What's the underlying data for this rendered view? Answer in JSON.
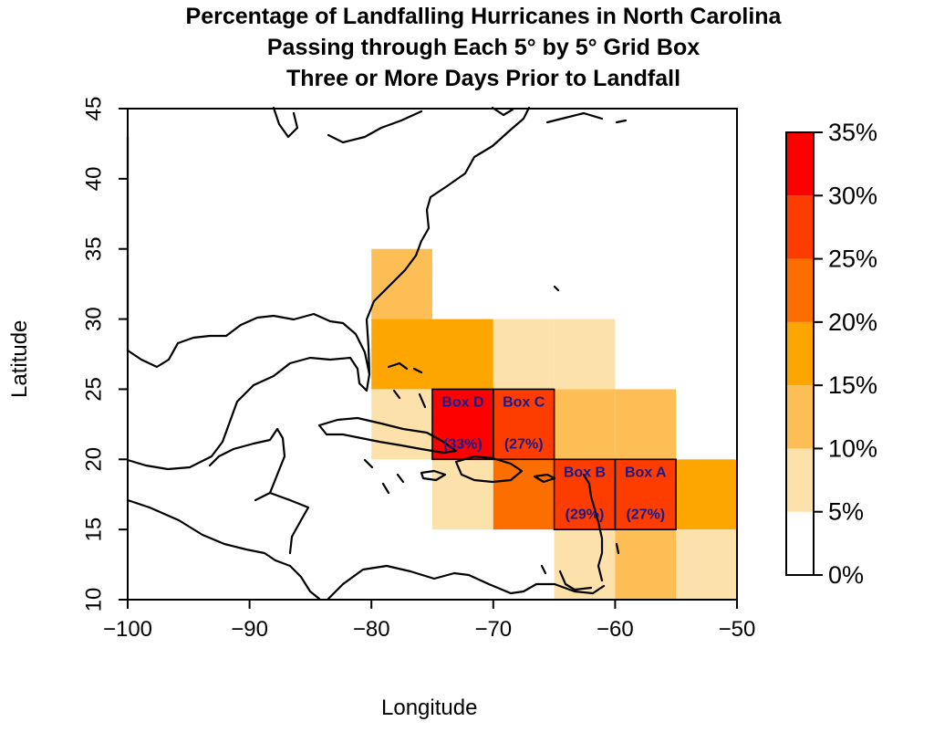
{
  "title": {
    "line1": "Percentage of Landfalling Hurricanes in North Carolina",
    "line2": "Passing through Each 5° by 5° Grid Box",
    "line3": "Three or More Days Prior to Landfall"
  },
  "axes": {
    "xlabel": "Longitude",
    "ylabel": "Latitude",
    "xticks": [
      "−100",
      "−90",
      "−80",
      "−70",
      "−60",
      "−50"
    ],
    "yticks": [
      "10",
      "15",
      "20",
      "25",
      "30",
      "35",
      "40",
      "45"
    ]
  },
  "legend": {
    "labels": [
      "0%",
      "5%",
      "10%",
      "15%",
      "20%",
      "25%",
      "30%",
      "35%"
    ],
    "colors": [
      "#ffffff",
      "#fde1aa",
      "#fdbf55",
      "#fda500",
      "#fd6e00",
      "#fd3c00",
      "#fd0000"
    ]
  },
  "map_cells": [
    {
      "lon": -80,
      "lat": 30,
      "pct_class": 2
    },
    {
      "lon": -80,
      "lat": 25,
      "pct_class": 3
    },
    {
      "lon": -75,
      "lat": 25,
      "pct_class": 3
    },
    {
      "lon": -70,
      "lat": 25,
      "pct_class": 1
    },
    {
      "lon": -65,
      "lat": 25,
      "pct_class": 1
    },
    {
      "lon": -80,
      "lat": 20,
      "pct_class": 1
    },
    {
      "lon": -75,
      "lat": 20,
      "pct_class": 6
    },
    {
      "lon": -70,
      "lat": 20,
      "pct_class": 5
    },
    {
      "lon": -65,
      "lat": 20,
      "pct_class": 2
    },
    {
      "lon": -60,
      "lat": 20,
      "pct_class": 2
    },
    {
      "lon": -75,
      "lat": 15,
      "pct_class": 1
    },
    {
      "lon": -70,
      "lat": 15,
      "pct_class": 4
    },
    {
      "lon": -65,
      "lat": 15,
      "pct_class": 5
    },
    {
      "lon": -60,
      "lat": 15,
      "pct_class": 5
    },
    {
      "lon": -55,
      "lat": 15,
      "pct_class": 3
    },
    {
      "lon": -65,
      "lat": 10,
      "pct_class": 1
    },
    {
      "lon": -60,
      "lat": 10,
      "pct_class": 2
    },
    {
      "lon": -55,
      "lat": 10,
      "pct_class": 1
    }
  ],
  "boxes": [
    {
      "name": "Box D",
      "value": "(33%)",
      "lon": -75,
      "lat": 20
    },
    {
      "name": "Box C",
      "value": "(27%)",
      "lon": -70,
      "lat": 20
    },
    {
      "name": "Box B",
      "value": "(29%)",
      "lon": -65,
      "lat": 15
    },
    {
      "name": "Box A",
      "value": "(27%)",
      "lon": -60,
      "lat": 15
    }
  ],
  "box_label_color": "#1a1a8c"
}
